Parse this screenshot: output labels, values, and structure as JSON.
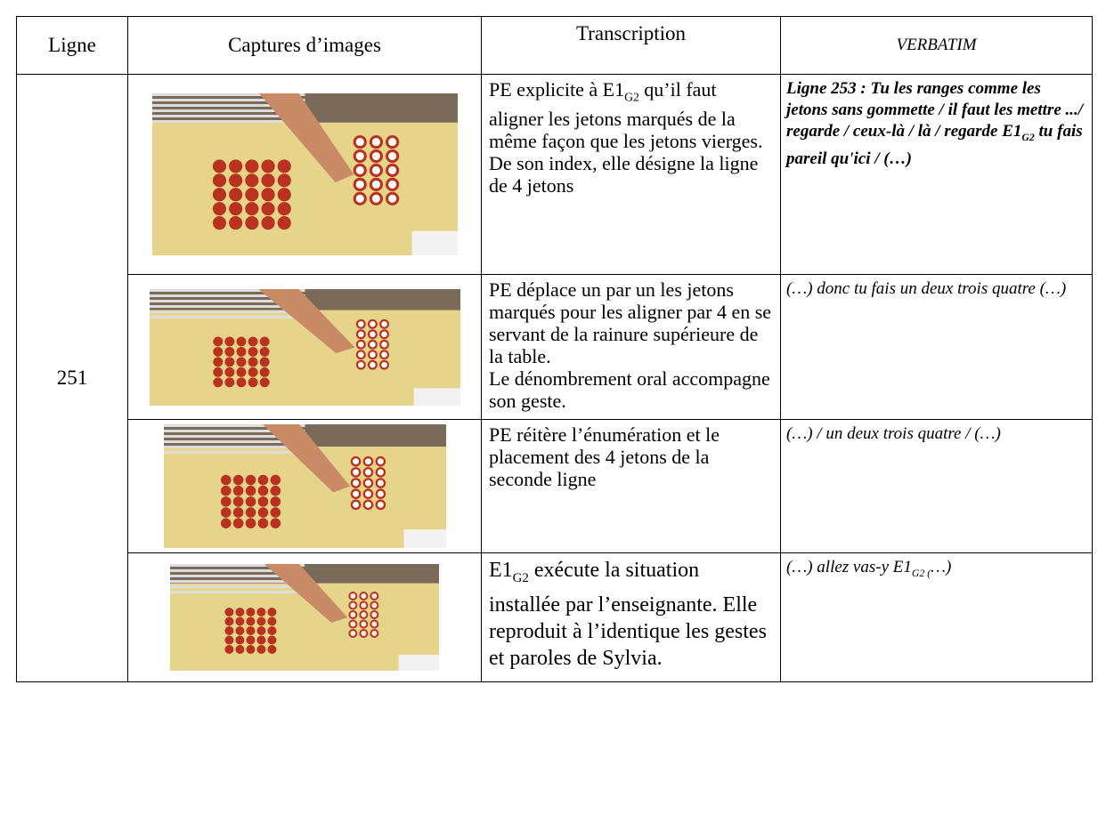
{
  "table": {
    "header": [
      "Ligne",
      "Captures d’images",
      "Transcription",
      "VERBATIM"
    ],
    "line_number": "251",
    "rows": [
      {
        "transcription": [
          "PE explicite à E1",
          {
            "sub": "G2"
          },
          " qu’il faut aligner les jetons marqués de la même façon que les jetons vierges. De son index, elle désigne la ligne de 4 jetons"
        ],
        "verbatim": [
          "Ligne 253 : Tu les ranges comme les jetons sans gommette / il faut les mettre .../ regarde / ceux-là / là / regarde E1",
          {
            "sub": "G2"
          },
          " tu fais pareil qu'ici / (…)"
        ]
      },
      {
        "transcription": [
          "PE déplace un par un les jetons marqués pour les aligner par 4 en se servant de la rainure supérieure de la table.\nLe dénombrement oral accompagne son geste."
        ],
        "verbatim": [
          "(…) donc tu fais un deux trois quatre (…)"
        ]
      },
      {
        "transcription": [
          "PE réitère l’énumération et le placement des 4 jetons de la seconde ligne"
        ],
        "verbatim": [
          "(…) / un deux trois quatre / (…)"
        ]
      },
      {
        "transcription": [
          "E1",
          {
            "sub": "G2"
          },
          " exécute la situation installée par l’enseignante. Elle reproduit à l’identique les gestes et paroles de Sylvia."
        ],
        "verbatim": [
          "(…) allez vas-y E1",
          {
            "sub": "G2 ("
          },
          "…)"
        ]
      }
    ]
  }
}
